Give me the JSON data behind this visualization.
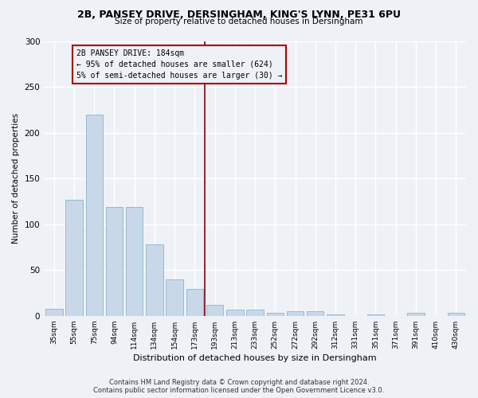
{
  "title_line1": "2B, PANSEY DRIVE, DERSINGHAM, KING'S LYNN, PE31 6PU",
  "title_line2": "Size of property relative to detached houses in Dersingham",
  "xlabel": "Distribution of detached houses by size in Dersingham",
  "ylabel": "Number of detached properties",
  "categories": [
    "35sqm",
    "55sqm",
    "75sqm",
    "94sqm",
    "114sqm",
    "134sqm",
    "154sqm",
    "173sqm",
    "193sqm",
    "213sqm",
    "233sqm",
    "252sqm",
    "272sqm",
    "292sqm",
    "312sqm",
    "331sqm",
    "351sqm",
    "371sqm",
    "391sqm",
    "410sqm",
    "430sqm"
  ],
  "values": [
    8,
    127,
    220,
    119,
    119,
    78,
    40,
    29,
    12,
    7,
    7,
    3,
    5,
    5,
    2,
    0,
    2,
    0,
    3,
    0,
    3
  ],
  "bar_color": "#c8d8e8",
  "bar_edge_color": "#7aaac8",
  "vline_color": "#880000",
  "annotation_text": "2B PANSEY DRIVE: 184sqm\n← 95% of detached houses are smaller (624)\n5% of semi-detached houses are larger (30) →",
  "annotation_box_color": "#aa0000",
  "ylim": [
    0,
    300
  ],
  "yticks": [
    0,
    50,
    100,
    150,
    200,
    250,
    300
  ],
  "footer_line1": "Contains HM Land Registry data © Crown copyright and database right 2024.",
  "footer_line2": "Contains public sector information licensed under the Open Government Licence v3.0.",
  "bg_color": "#eef2f6",
  "grid_color": "#ffffff"
}
